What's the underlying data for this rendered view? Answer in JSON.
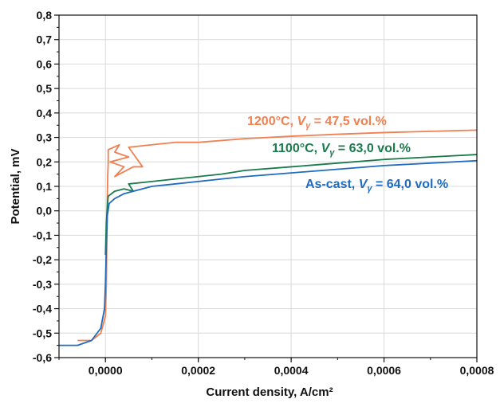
{
  "chart_data": {
    "type": "line",
    "xlabel": "Current density, A/cm²",
    "ylabel": "Potential, mV",
    "xlim": [
      -0.0001,
      0.0008
    ],
    "ylim": [
      -0.6,
      0.8
    ],
    "xticks": [
      0.0,
      0.0002,
      0.0004,
      0.0006,
      0.0008
    ],
    "xtick_labels": [
      "0,0000",
      "0,0002",
      "0,0004",
      "0,0006",
      "0,0008"
    ],
    "yticks": [
      -0.6,
      -0.5,
      -0.4,
      -0.3,
      -0.2,
      -0.1,
      0.0,
      0.1,
      0.2,
      0.3,
      0.4,
      0.5,
      0.6,
      0.7,
      0.8
    ],
    "ytick_labels": [
      "-0,6",
      "-0,5",
      "-0,4",
      "-0,3",
      "-0,2",
      "-0,1",
      "0,0",
      "0,1",
      "0,2",
      "0,3",
      "0,4",
      "0,5",
      "0,6",
      "0,7",
      "0,8"
    ],
    "grid": true,
    "series": [
      {
        "name": "1200°C",
        "color": "#f08050",
        "points": [
          [
            -6e-05,
            -0.53
          ],
          [
            -3e-05,
            -0.53
          ],
          [
            -1e-05,
            -0.5
          ],
          [
            0.0,
            -0.43
          ],
          [
            2e-06,
            -0.3
          ],
          [
            3e-06,
            -0.1
          ],
          [
            4e-06,
            0.05
          ],
          [
            5e-06,
            0.15
          ],
          [
            6e-06,
            0.2
          ],
          [
            6e-06,
            0.25
          ],
          [
            3e-05,
            0.27
          ],
          [
            2e-05,
            0.24
          ],
          [
            5e-05,
            0.22
          ],
          [
            1e-05,
            0.2
          ],
          [
            4e-05,
            0.18
          ],
          [
            2e-05,
            0.14
          ],
          [
            6e-05,
            0.18
          ],
          [
            8e-05,
            0.18
          ],
          [
            5e-05,
            0.26
          ],
          [
            0.0001,
            0.27
          ],
          [
            0.00015,
            0.28
          ],
          [
            0.0002,
            0.28
          ],
          [
            0.0003,
            0.295
          ],
          [
            0.0004,
            0.305
          ],
          [
            0.0005,
            0.313
          ],
          [
            0.0006,
            0.32
          ],
          [
            0.0007,
            0.325
          ],
          [
            0.0008,
            0.33
          ]
        ],
        "label_text": "1200°C, ",
        "label_v": "V",
        "label_sub": "γ",
        "label_value": " = 47,5 vol.%"
      },
      {
        "name": "1100°C",
        "color": "#1a7a4c",
        "points": [
          [
            0.0,
            -0.18
          ],
          [
            2e-06,
            -0.05
          ],
          [
            4e-06,
            0.02
          ],
          [
            6e-06,
            0.06
          ],
          [
            2e-05,
            0.08
          ],
          [
            4e-05,
            0.09
          ],
          [
            6e-05,
            0.08
          ],
          [
            5e-05,
            0.11
          ],
          [
            0.0001,
            0.12
          ],
          [
            0.00015,
            0.13
          ],
          [
            0.0002,
            0.14
          ],
          [
            0.00025,
            0.15
          ],
          [
            0.0003,
            0.165
          ],
          [
            0.0004,
            0.18
          ],
          [
            0.0005,
            0.195
          ],
          [
            0.0006,
            0.21
          ],
          [
            0.0007,
            0.22
          ],
          [
            0.0008,
            0.23
          ]
        ],
        "label_text": "1100°C, ",
        "label_v": "V",
        "label_sub": "γ",
        "label_value": " = 63,0 vol.%"
      },
      {
        "name": "As-cast",
        "color": "#1f6bbf",
        "points": [
          [
            -0.0001,
            -0.55
          ],
          [
            -6e-05,
            -0.55
          ],
          [
            -3e-05,
            -0.53
          ],
          [
            -1e-05,
            -0.48
          ],
          [
            -2e-06,
            -0.4
          ],
          [
            0.0,
            -0.3
          ],
          [
            2e-06,
            -0.15
          ],
          [
            4e-06,
            -0.02
          ],
          [
            8e-06,
            0.03
          ],
          [
            2e-05,
            0.05
          ],
          [
            4e-05,
            0.07
          ],
          [
            6e-05,
            0.08
          ],
          [
            0.0001,
            0.1
          ],
          [
            0.00015,
            0.11
          ],
          [
            0.0002,
            0.12
          ],
          [
            0.00025,
            0.13
          ],
          [
            0.0003,
            0.14
          ],
          [
            0.0004,
            0.155
          ],
          [
            0.0005,
            0.17
          ],
          [
            0.0006,
            0.185
          ],
          [
            0.0007,
            0.195
          ],
          [
            0.0008,
            0.205
          ]
        ],
        "label_text": "As-cast, ",
        "label_v": "V",
        "label_sub": "γ",
        "label_value": " = 64,0 vol.%"
      }
    ]
  }
}
